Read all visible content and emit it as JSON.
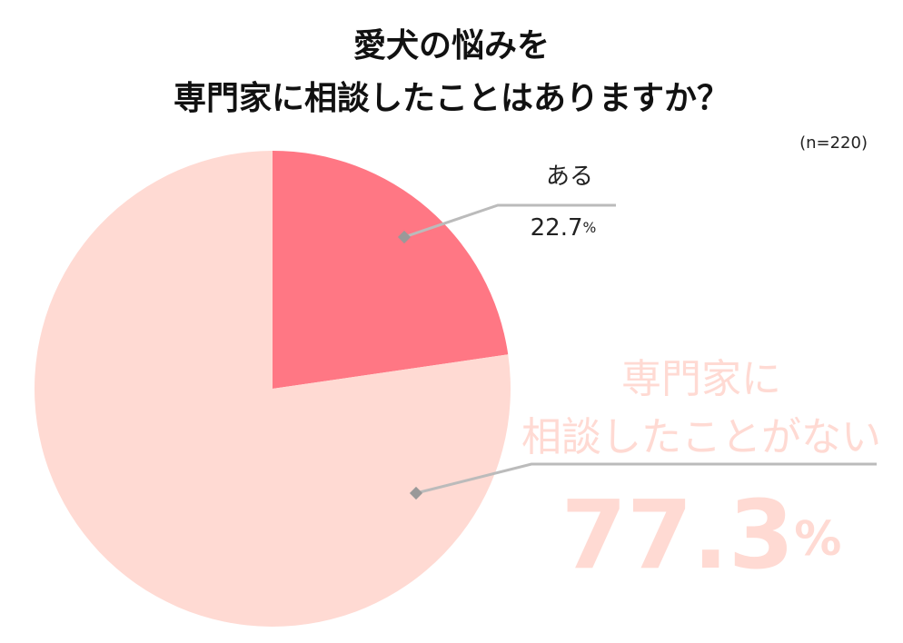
{
  "chart_data": {
    "type": "pie",
    "title": [
      "愛犬の悩みを",
      "専門家に相談したことはありますか？"
    ],
    "subtitle": "(n=220)",
    "categories": [
      "ある",
      [
        "専門家に",
        "相談したことがない"
      ]
    ],
    "values": [
      22.7,
      77.3
    ],
    "value_labels": [
      "22.7%",
      "77.3%"
    ],
    "colors": [
      "#ff7784",
      "#ffdad3"
    ]
  }
}
